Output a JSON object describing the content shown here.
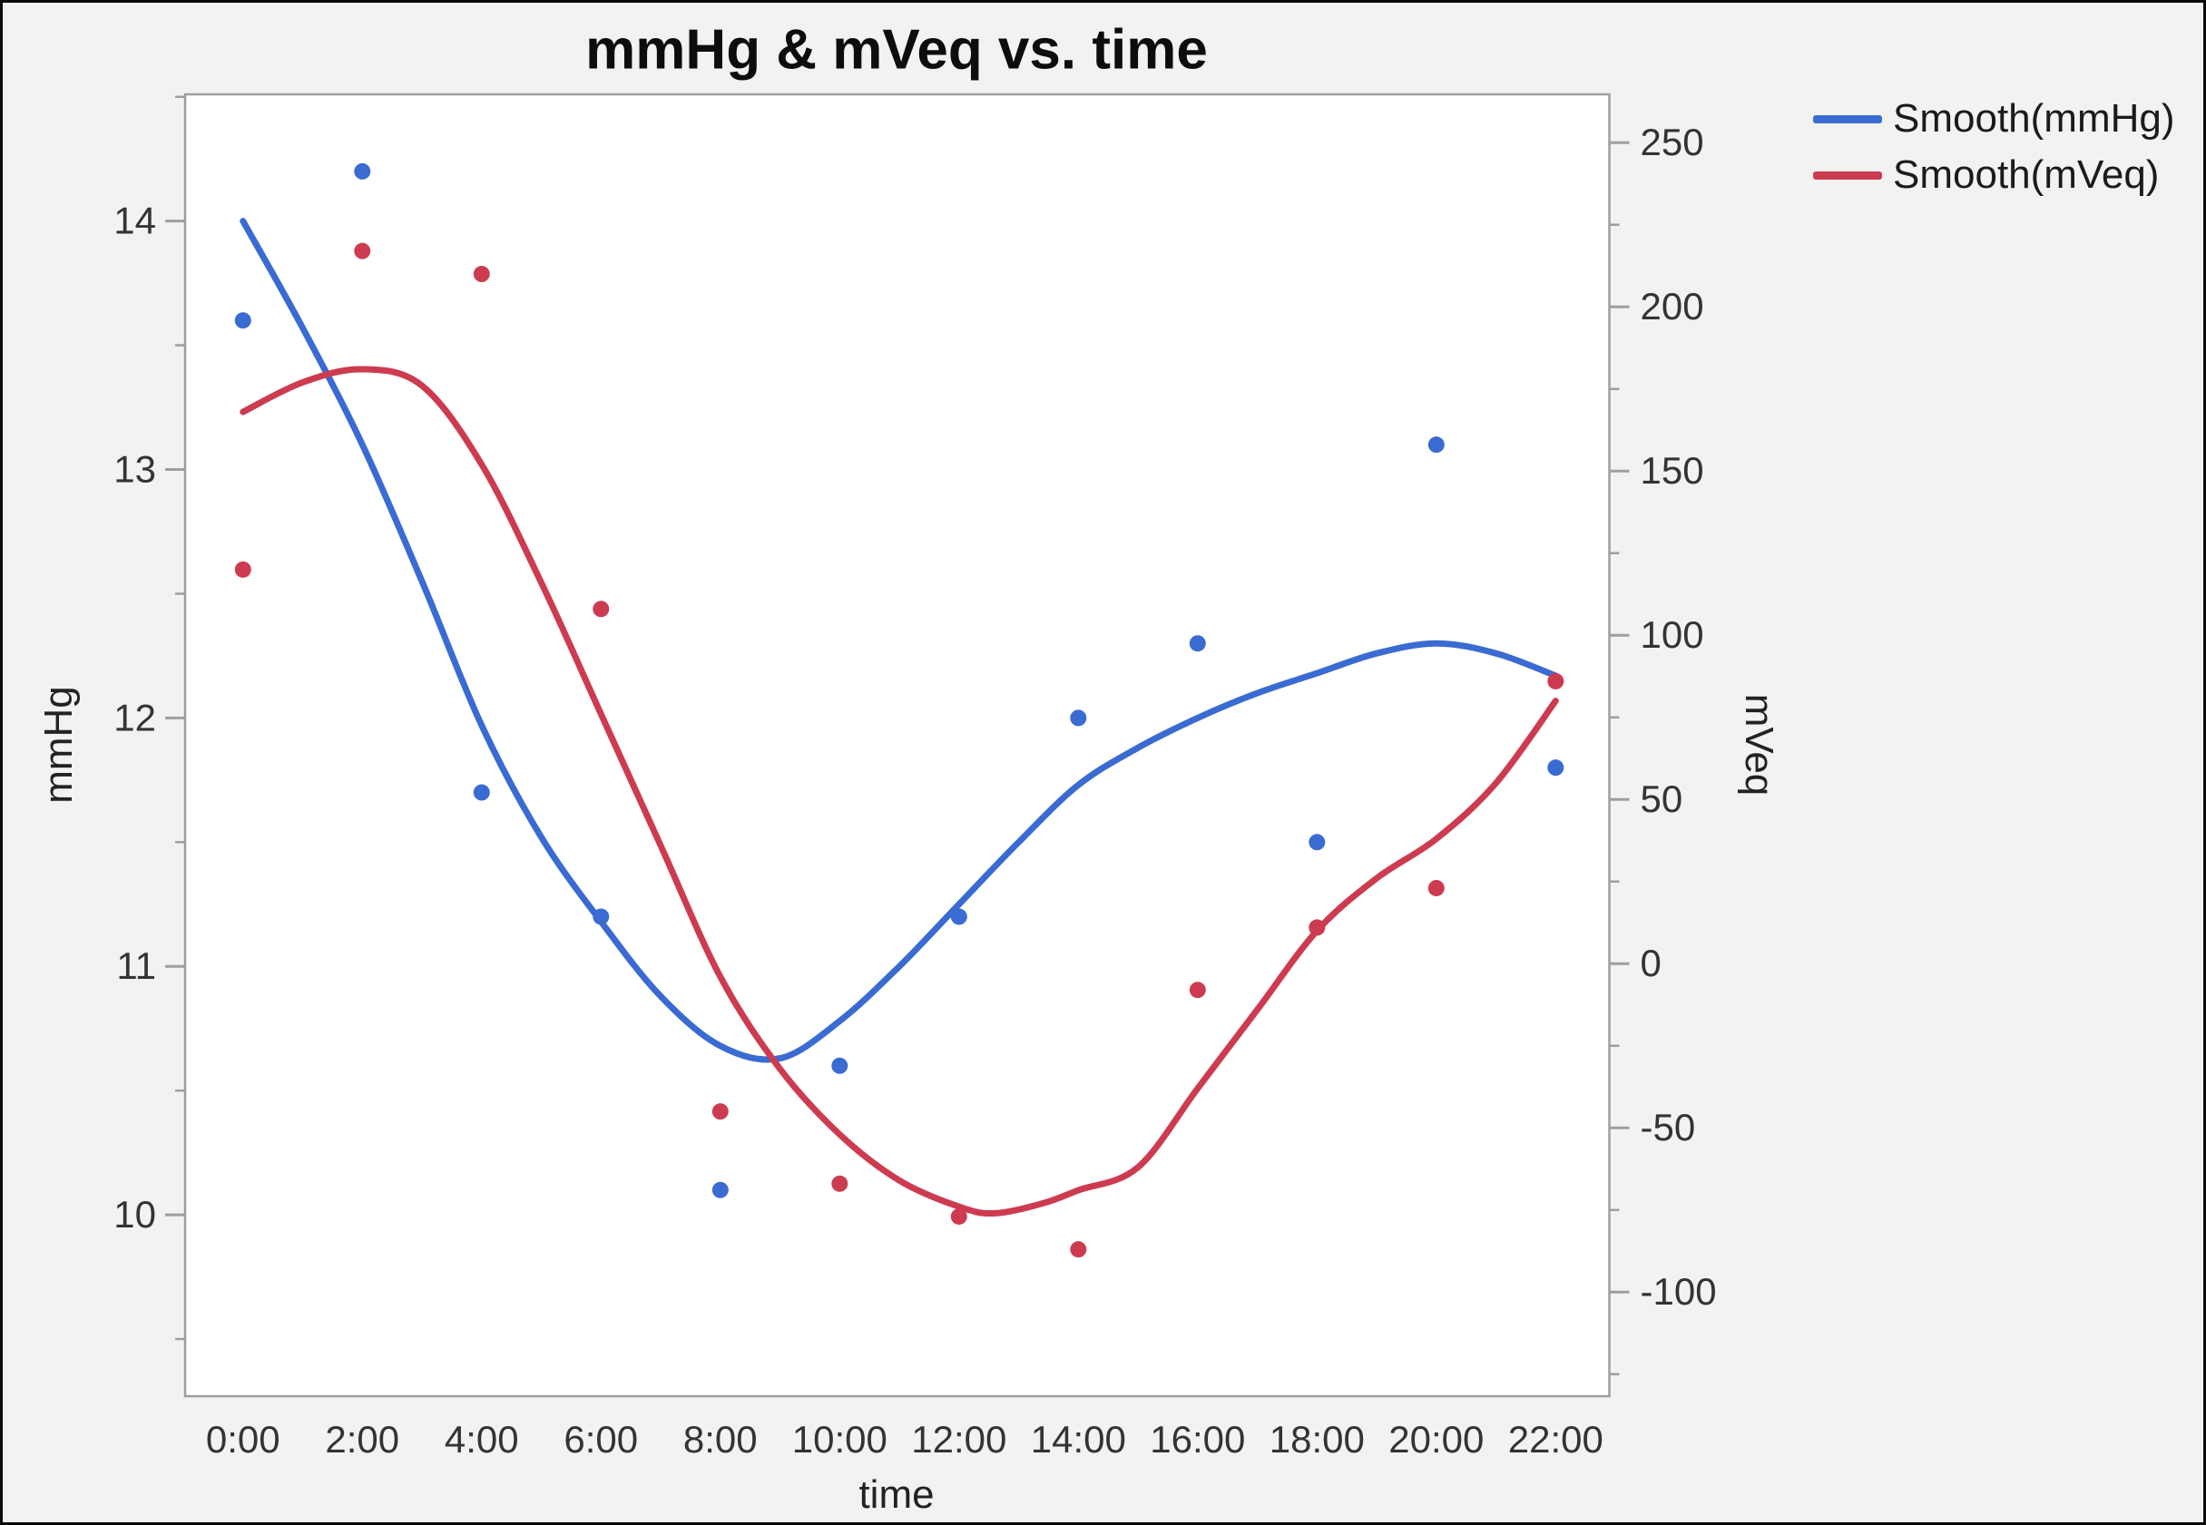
{
  "window": {
    "title": "mmHg & mVeq vs. time"
  },
  "chart": {
    "title": "mmHg & mVeq vs. time",
    "x_axis_label": "time",
    "left_axis_label": "mmHg",
    "right_axis_label": "mVeq"
  },
  "legend": {
    "items": [
      {
        "label": "Smooth(mmHg)",
        "color": "#3a6bd2"
      },
      {
        "label": "Smooth(mVeq)",
        "color": "#cd3b50"
      }
    ]
  },
  "chart_data": {
    "type": "scatter",
    "title": "mmHg & mVeq vs. time",
    "xlabel": "time",
    "ylabel_left": "mmHg",
    "ylabel_right": "mVeq",
    "x_tick_labels": [
      "0:00",
      "2:00",
      "4:00",
      "6:00",
      "8:00",
      "10:00",
      "12:00",
      "14:00",
      "16:00",
      "18:00",
      "20:00",
      "22:00"
    ],
    "x_hours": [
      0,
      2,
      4,
      6,
      8,
      10,
      12,
      14,
      16,
      18,
      20,
      22
    ],
    "series": [
      {
        "name": "mmHg",
        "axis": "left",
        "color": "#3a6bd2",
        "marker": "circle",
        "values": [
          13.6,
          14.2,
          11.7,
          11.2,
          10.1,
          10.6,
          11.2,
          12.0,
          12.3,
          11.5,
          13.1,
          11.8
        ]
      },
      {
        "name": "mVeq",
        "axis": "right",
        "color": "#cd3b50",
        "marker": "circle",
        "values": [
          120,
          217,
          210,
          108,
          -45,
          -67,
          -77,
          -87,
          -8,
          11,
          23,
          86
        ]
      }
    ],
    "smooth_curves": [
      {
        "name": "Smooth(mmHg)",
        "axis": "left",
        "color": "#3a6bd2",
        "points": [
          [
            0,
            14.0
          ],
          [
            1,
            13.57
          ],
          [
            2,
            13.1
          ],
          [
            3,
            12.55
          ],
          [
            4,
            11.97
          ],
          [
            5,
            11.52
          ],
          [
            6,
            11.18
          ],
          [
            7,
            10.88
          ],
          [
            8,
            10.68
          ],
          [
            9,
            10.63
          ],
          [
            10,
            10.78
          ],
          [
            11,
            11.0
          ],
          [
            12,
            11.25
          ],
          [
            13,
            11.5
          ],
          [
            14,
            11.73
          ],
          [
            15,
            11.88
          ],
          [
            16,
            12.0
          ],
          [
            17,
            12.1
          ],
          [
            18,
            12.18
          ],
          [
            19,
            12.26
          ],
          [
            20,
            12.3
          ],
          [
            21,
            12.26
          ],
          [
            22,
            12.17
          ]
        ]
      },
      {
        "name": "Smooth(mVeq)",
        "axis": "right",
        "color": "#cd3b50",
        "points": [
          [
            0,
            168
          ],
          [
            1,
            177
          ],
          [
            2,
            181
          ],
          [
            3,
            176
          ],
          [
            4,
            152
          ],
          [
            5,
            116
          ],
          [
            6,
            76
          ],
          [
            7,
            36
          ],
          [
            8,
            -4
          ],
          [
            9,
            -32
          ],
          [
            10,
            -52
          ],
          [
            11,
            -66
          ],
          [
            12,
            -74
          ],
          [
            12.6,
            -76
          ],
          [
            13.4,
            -73
          ],
          [
            14,
            -69
          ],
          [
            15,
            -62
          ],
          [
            16,
            -38
          ],
          [
            17,
            -14
          ],
          [
            18,
            10
          ],
          [
            19,
            26
          ],
          [
            20,
            38
          ],
          [
            21,
            55
          ],
          [
            22,
            80
          ]
        ]
      }
    ],
    "axes": {
      "x": {
        "label": "time",
        "min": -0.97,
        "max": 22.9
      },
      "left": {
        "label": "mmHg",
        "min": 9.27,
        "max": 14.51,
        "major_ticks": [
          10,
          11,
          12,
          13,
          14
        ],
        "minor_step": 0.5
      },
      "right": {
        "label": "mVeq",
        "min": -131.7,
        "max": 264.7,
        "major_ticks": [
          -100,
          -50,
          0,
          50,
          100,
          150,
          200,
          250
        ],
        "minor_step": 25
      }
    },
    "legend_position": "top-right",
    "grid": false,
    "plot_background": "#ffffff",
    "frame_color": "#9e9e9e"
  }
}
